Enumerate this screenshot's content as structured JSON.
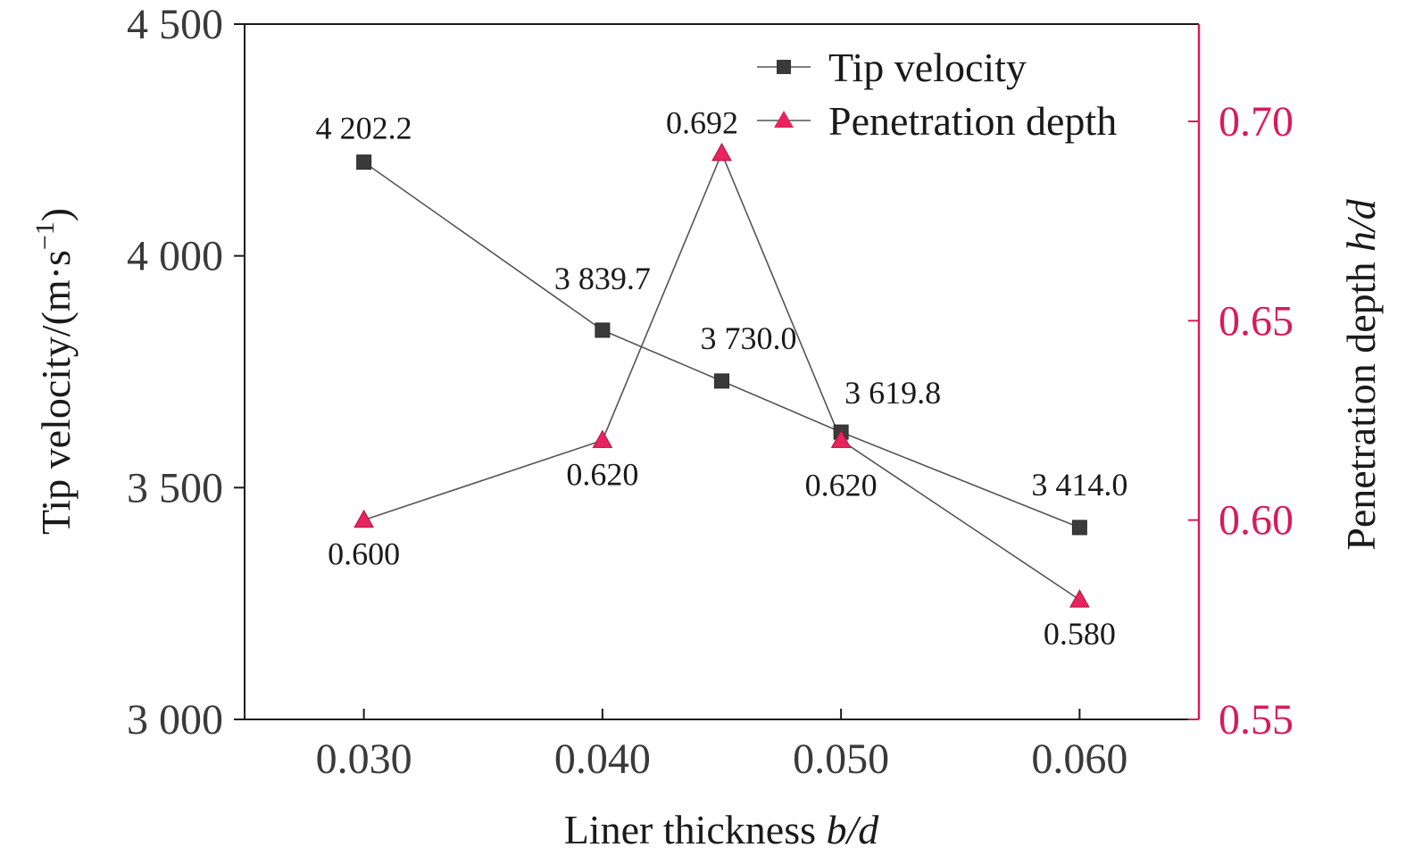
{
  "chart_data": {
    "type": "line",
    "xlabel": "Liner thickness",
    "xlabel_var": "b/d",
    "ylabel_left": "Tip velocity/(m·s",
    "ylabel_left_sup": "−1",
    "ylabel_left_close": ")",
    "ylabel_right": "Penetration depth ",
    "ylabel_right_var": "h/d",
    "x_ticks": [
      {
        "value": 0.03,
        "label": "0.030"
      },
      {
        "value": 0.04,
        "label": "0.040"
      },
      {
        "value": 0.05,
        "label": "0.050"
      },
      {
        "value": 0.06,
        "label": "0.060"
      }
    ],
    "xlim": [
      0.025,
      0.065
    ],
    "y_left": {
      "lim": [
        3000,
        4500
      ],
      "ticks": [
        {
          "value": 3000,
          "label": "3 000"
        },
        {
          "value": 3500,
          "label": "3 500"
        },
        {
          "value": 4000,
          "label": "4 000"
        },
        {
          "value": 4500,
          "label": "4 500"
        }
      ]
    },
    "y_right": {
      "lim": [
        0.55,
        0.7244
      ],
      "ticks": [
        {
          "value": 0.55,
          "label": "0.55"
        },
        {
          "value": 0.6,
          "label": "0.60"
        },
        {
          "value": 0.65,
          "label": "0.65"
        },
        {
          "value": 0.7,
          "label": "0.70"
        }
      ],
      "color": "#d81b5a"
    },
    "legend_position": "top-right",
    "grid": false,
    "series": [
      {
        "name": "Tip velocity",
        "axis": "left",
        "marker": "square",
        "color": "#3a3a3a",
        "x": [
          0.03,
          0.04,
          0.045,
          0.05,
          0.06
        ],
        "y": [
          4202.2,
          3839.7,
          3730.0,
          3619.8,
          3414.0
        ],
        "labels": [
          "4 202.2",
          "3 839.7",
          "3 730.0",
          "3 619.8",
          "3 414.0"
        ]
      },
      {
        "name": "Penetration depth",
        "axis": "right",
        "marker": "triangle",
        "color": "#e8245f",
        "x": [
          0.03,
          0.04,
          0.045,
          0.05,
          0.06
        ],
        "y": [
          0.6,
          0.62,
          0.692,
          0.62,
          0.58
        ],
        "labels": [
          "0.600",
          "0.620",
          "0.692",
          "0.620",
          "0.580"
        ]
      }
    ]
  }
}
